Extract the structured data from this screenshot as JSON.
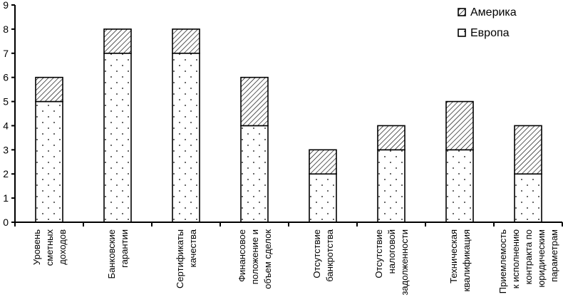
{
  "chart_data": {
    "type": "bar",
    "stacked": true,
    "title": "",
    "xlabel": "",
    "ylabel": "",
    "ylim": [
      0,
      9
    ],
    "yticks": [
      "0",
      "1",
      "2",
      "3",
      "4",
      "5",
      "6",
      "7",
      "8",
      "9"
    ],
    "grid": false,
    "legend_position": "top-right",
    "categories": [
      [
        "Уровень",
        "сметных",
        "доходов"
      ],
      [
        "Банковские",
        "гарантии"
      ],
      [
        "Сертификаты",
        "качества"
      ],
      [
        "Финансовое",
        "положение и",
        "объем сделок"
      ],
      [
        "Отсутствие",
        "банкротства"
      ],
      [
        "Отсутствие",
        "налоговой",
        "задолженности"
      ],
      [
        "Техническая",
        "квалификация"
      ],
      [
        "Приемлемость",
        "к исполнению",
        "контракта по",
        "юридическим",
        "параметрам"
      ]
    ],
    "series": [
      {
        "name": "Европа",
        "pattern": "dots",
        "values": [
          5,
          7,
          7,
          4,
          2,
          3,
          3,
          2
        ]
      },
      {
        "name": "Америка",
        "pattern": "diagonal-hatch",
        "values": [
          1,
          1,
          1,
          2,
          1,
          1,
          2,
          2
        ]
      }
    ],
    "legend_order": [
      "Америка",
      "Европа"
    ]
  }
}
